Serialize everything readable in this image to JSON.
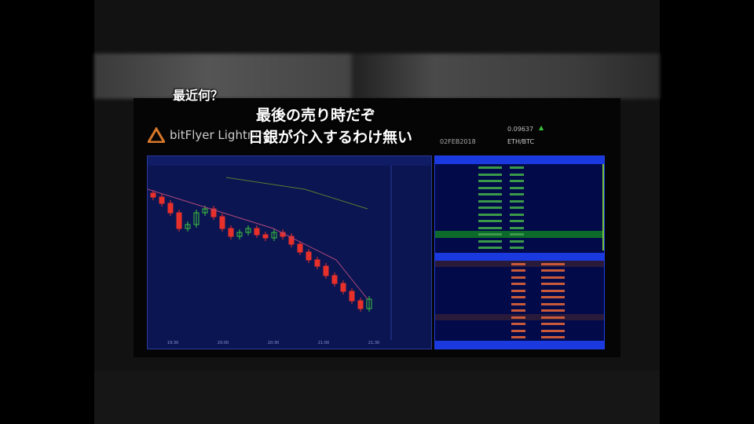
{
  "captions": {
    "top_partial": "最近何？",
    "line1": "最後の売り時だぞ",
    "line2": "日銀が介入するわけ無い"
  },
  "header": {
    "app_name": "bitFlyer Lightning",
    "date": "02FEB2018",
    "eth_btc_price": "0.09637",
    "eth_btc_label": "ETH/BTC"
  },
  "chart": {
    "time_labels": [
      "19:30",
      "20:00",
      "20:30",
      "21:00",
      "21:30"
    ]
  },
  "colors": {
    "up": "#3cc43c",
    "down": "#e8302a",
    "panel": "#0b1552",
    "book_accent": "#1a3ae0"
  }
}
